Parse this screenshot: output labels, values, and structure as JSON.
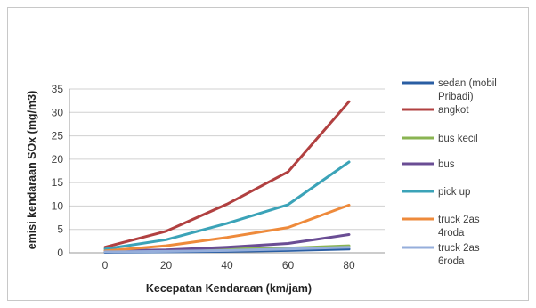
{
  "chart_data": {
    "type": "line",
    "title": "",
    "xlabel": "Kecepatan Kendaraan (km/jam)",
    "ylabel": "emisi kendaraan SOx (mg/m3)",
    "x": [
      0,
      20,
      40,
      60,
      80
    ],
    "x_tick_labels": [
      "0",
      "20",
      "40",
      "60",
      "80"
    ],
    "ylim": [
      0,
      35
    ],
    "y_ticks": [
      0,
      5,
      10,
      15,
      20,
      25,
      30,
      35
    ],
    "grid": true,
    "legend_position": "right",
    "series": [
      {
        "name": "sedan (mobil Pribadi)",
        "color": "#2a5ea3",
        "values": [
          0.1,
          0.2,
          0.3,
          0.5,
          0.8
        ]
      },
      {
        "name": "angkot",
        "color": "#b14040",
        "values": [
          1.2,
          4.6,
          10.4,
          17.3,
          32.3
        ]
      },
      {
        "name": "bus kecil",
        "color": "#8ab452",
        "values": [
          0.3,
          0.5,
          0.8,
          1.0,
          1.5
        ]
      },
      {
        "name": "bus",
        "color": "#6a4d94",
        "values": [
          0.4,
          0.6,
          1.2,
          2.0,
          3.9
        ]
      },
      {
        "name": "pick up",
        "color": "#3ba3b8",
        "values": [
          0.8,
          2.8,
          6.3,
          10.3,
          19.4
        ]
      },
      {
        "name": "truck 2as 4roda",
        "color": "#ee8a3b",
        "values": [
          0.4,
          1.5,
          3.3,
          5.4,
          10.2
        ]
      },
      {
        "name": "truck 2as 6roda",
        "color": "#95aedb",
        "values": [
          0.2,
          0.3,
          0.5,
          0.8,
          1.2
        ]
      }
    ]
  }
}
